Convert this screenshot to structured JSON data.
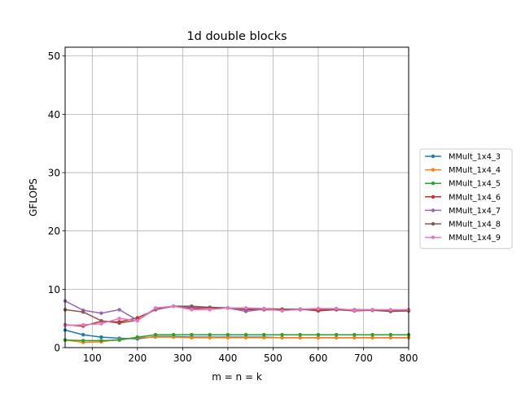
{
  "chart_data": {
    "type": "line",
    "title": "1d double blocks",
    "xlabel": "m = n = k",
    "ylabel": "GFLOPS",
    "xlim": [
      40,
      800
    ],
    "ylim": [
      0,
      51.5
    ],
    "xticks": [
      100,
      200,
      300,
      400,
      500,
      600,
      700,
      800
    ],
    "yticks": [
      0,
      10,
      20,
      30,
      40,
      50
    ],
    "grid": true,
    "legend_position": "right",
    "x": [
      40,
      80,
      120,
      160,
      200,
      240,
      280,
      320,
      360,
      400,
      440,
      480,
      520,
      560,
      600,
      640,
      680,
      720,
      760,
      800
    ],
    "series": [
      {
        "name": "MMult_1x4_3",
        "color": "#1f77b4",
        "values": [
          3.0,
          2.2,
          1.8,
          1.6,
          1.5,
          1.9,
          1.9,
          1.8,
          1.8,
          1.8,
          1.8,
          1.8,
          1.7,
          1.7,
          1.7,
          1.7,
          1.7,
          1.7,
          1.7,
          1.7
        ]
      },
      {
        "name": "MMult_1x4_4",
        "color": "#ff7f0e",
        "values": [
          1.3,
          0.9,
          1.0,
          1.4,
          1.7,
          1.8,
          1.8,
          1.7,
          1.7,
          1.7,
          1.7,
          1.7,
          1.7,
          1.7,
          1.7,
          1.7,
          1.7,
          1.7,
          1.7,
          1.7
        ]
      },
      {
        "name": "MMult_1x4_5",
        "color": "#2ca02c",
        "values": [
          1.3,
          1.2,
          1.2,
          1.3,
          1.8,
          2.2,
          2.2,
          2.2,
          2.2,
          2.2,
          2.2,
          2.2,
          2.2,
          2.2,
          2.2,
          2.2,
          2.2,
          2.2,
          2.2,
          2.2
        ]
      },
      {
        "name": "MMult_1x4_6",
        "color": "#d62728",
        "values": [
          3.9,
          3.7,
          4.5,
          4.4,
          5.1,
          6.5,
          7.1,
          6.7,
          6.8,
          6.8,
          6.5,
          6.5,
          6.4,
          6.6,
          6.3,
          6.5,
          6.3,
          6.4,
          6.3,
          6.3
        ]
      },
      {
        "name": "MMult_1x4_7",
        "color": "#9467bd",
        "values": [
          8.0,
          6.4,
          5.9,
          6.5,
          4.7,
          6.6,
          7.1,
          6.9,
          6.9,
          6.8,
          6.2,
          6.6,
          6.4,
          6.5,
          6.5,
          6.5,
          6.5,
          6.5,
          6.4,
          6.5
        ]
      },
      {
        "name": "MMult_1x4_8",
        "color": "#8c564b",
        "values": [
          6.5,
          6.1,
          4.6,
          4.2,
          4.7,
          6.7,
          7.1,
          7.1,
          6.9,
          6.8,
          6.6,
          6.7,
          6.6,
          6.6,
          6.5,
          6.5,
          6.4,
          6.4,
          6.2,
          6.3
        ]
      },
      {
        "name": "MMult_1x4_9",
        "color": "#e377c2",
        "values": [
          3.8,
          3.9,
          4.1,
          5.0,
          4.6,
          6.8,
          7.1,
          6.5,
          6.5,
          6.8,
          6.8,
          6.7,
          6.3,
          6.6,
          6.7,
          6.7,
          6.4,
          6.5,
          6.5,
          6.5
        ]
      }
    ]
  }
}
